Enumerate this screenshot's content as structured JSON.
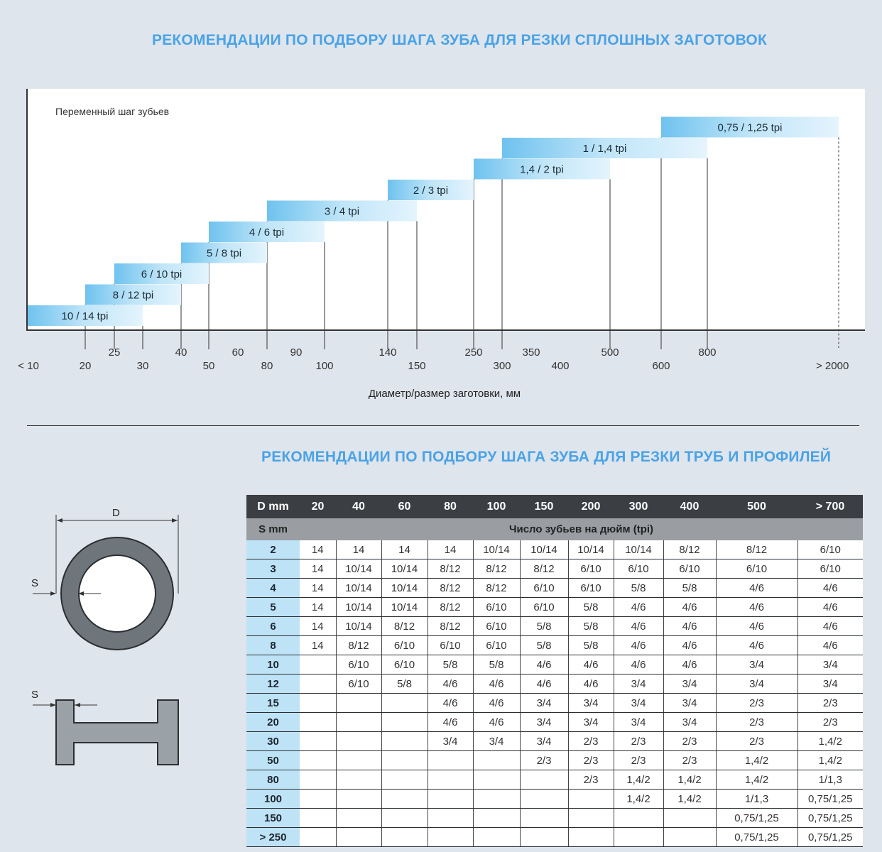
{
  "top_title": "РЕКОМЕНДАЦИИ ПО ПОДБОРУ ШАГА ЗУБА ДЛЯ РЕЗКИ СПЛОШНЫХ ЗАГОТОВОК",
  "bottom_title": "РЕКОМЕНДАЦИИ ПО ПОДБОРУ ШАГА ЗУБА ДЛЯ РЕЗКИ ТРУБ И ПРОФИЛЕЙ",
  "colors": {
    "title": "#4aa3e6",
    "bar_light": "#d6eefb",
    "bar_dark": "#5bb8ec",
    "header_dark": "#3b3f44",
    "header_grey": "#9a9ea3",
    "row_head": "#bfe3f6"
  },
  "chart_data": {
    "type": "bar",
    "subtitle": "Переменный шаг зубьев",
    "xlabel": "Диаметр/размер заготовки, мм",
    "tick_labels_upper": [
      "25",
      "40",
      "60",
      "90",
      "140",
      "250",
      "350",
      "500",
      "800"
    ],
    "tick_labels_lower": [
      "< 10",
      "20",
      "30",
      "50",
      "80",
      "100",
      "150",
      "300",
      "400",
      "600",
      "> 2000"
    ],
    "bars": [
      {
        "label": "10 / 14 tpi",
        "from": "< 10",
        "to": "30"
      },
      {
        "label": "8 / 12 tpi",
        "from": "20",
        "to": "40"
      },
      {
        "label": "6 / 10 tpi",
        "from": "25",
        "to": "50"
      },
      {
        "label": "5 / 8 tpi",
        "from": "40",
        "to": "80"
      },
      {
        "label": "4 / 6 tpi",
        "from": "50",
        "to": "100"
      },
      {
        "label": "3 / 4 tpi",
        "from": "80",
        "to": "150"
      },
      {
        "label": "2 / 3 tpi",
        "from": "140",
        "to": "250"
      },
      {
        "label": "1,4 / 2 tpi",
        "from": "250",
        "to": "500"
      },
      {
        "label": "1 / 1,4 tpi",
        "from": "300",
        "to": "800"
      },
      {
        "label": "0,75 / 1,25 tpi",
        "from": "600",
        "to": "> 2000"
      }
    ]
  },
  "table": {
    "corner_d": "D mm",
    "corner_s": "S mm",
    "columns": [
      "20",
      "40",
      "60",
      "80",
      "100",
      "150",
      "200",
      "300",
      "400",
      "500",
      "> 700"
    ],
    "subheader": "Число зубьев на дюйм (tpi)",
    "rows": [
      {
        "s": "2",
        "v": [
          "14",
          "14",
          "14",
          "14",
          "10/14",
          "10/14",
          "10/14",
          "10/14",
          "8/12",
          "8/12",
          "6/10"
        ]
      },
      {
        "s": "3",
        "v": [
          "14",
          "10/14",
          "10/14",
          "8/12",
          "8/12",
          "8/12",
          "6/10",
          "6/10",
          "6/10",
          "6/10",
          "6/10"
        ]
      },
      {
        "s": "4",
        "v": [
          "14",
          "10/14",
          "10/14",
          "8/12",
          "8/12",
          "6/10",
          "6/10",
          "5/8",
          "5/8",
          "4/6",
          "4/6"
        ]
      },
      {
        "s": "5",
        "v": [
          "14",
          "10/14",
          "10/14",
          "8/12",
          "6/10",
          "6/10",
          "5/8",
          "4/6",
          "4/6",
          "4/6",
          "4/6"
        ]
      },
      {
        "s": "6",
        "v": [
          "14",
          "10/14",
          "8/12",
          "8/12",
          "6/10",
          "5/8",
          "5/8",
          "4/6",
          "4/6",
          "4/6",
          "4/6"
        ]
      },
      {
        "s": "8",
        "v": [
          "14",
          "8/12",
          "6/10",
          "6/10",
          "6/10",
          "5/8",
          "5/8",
          "4/6",
          "4/6",
          "4/6",
          "4/6"
        ]
      },
      {
        "s": "10",
        "v": [
          "",
          "6/10",
          "6/10",
          "5/8",
          "5/8",
          "4/6",
          "4/6",
          "4/6",
          "4/6",
          "3/4",
          "3/4"
        ]
      },
      {
        "s": "12",
        "v": [
          "",
          "6/10",
          "5/8",
          "4/6",
          "4/6",
          "4/6",
          "4/6",
          "3/4",
          "3/4",
          "3/4",
          "3/4"
        ]
      },
      {
        "s": "15",
        "v": [
          "",
          "",
          "",
          "4/6",
          "4/6",
          "3/4",
          "3/4",
          "3/4",
          "3/4",
          "2/3",
          "2/3"
        ]
      },
      {
        "s": "20",
        "v": [
          "",
          "",
          "",
          "4/6",
          "4/6",
          "3/4",
          "3/4",
          "3/4",
          "3/4",
          "2/3",
          "2/3"
        ]
      },
      {
        "s": "30",
        "v": [
          "",
          "",
          "",
          "3/4",
          "3/4",
          "3/4",
          "2/3",
          "2/3",
          "2/3",
          "2/3",
          "1,4/2"
        ]
      },
      {
        "s": "50",
        "v": [
          "",
          "",
          "",
          "",
          "",
          "2/3",
          "2/3",
          "2/3",
          "2/3",
          "1,4/2",
          "1,4/2"
        ]
      },
      {
        "s": "80",
        "v": [
          "",
          "",
          "",
          "",
          "",
          "",
          "2/3",
          "1,4/2",
          "1,4/2",
          "1,4/2",
          "1/1,3"
        ]
      },
      {
        "s": "100",
        "v": [
          "",
          "",
          "",
          "",
          "",
          "",
          "",
          "1,4/2",
          "1,4/2",
          "1/1,3",
          "0,75/1,25"
        ]
      },
      {
        "s": "150",
        "v": [
          "",
          "",
          "",
          "",
          "",
          "",
          "",
          "",
          "",
          "0,75/1,25",
          "0,75/1,25"
        ]
      },
      {
        "s": "> 250",
        "v": [
          "",
          "",
          "",
          "",
          "",
          "",
          "",
          "",
          "",
          "0,75/1,25",
          "0,75/1,25"
        ]
      }
    ]
  },
  "diagram": {
    "d_label": "D",
    "s_label_tube": "S",
    "s_label_profile": "S"
  }
}
